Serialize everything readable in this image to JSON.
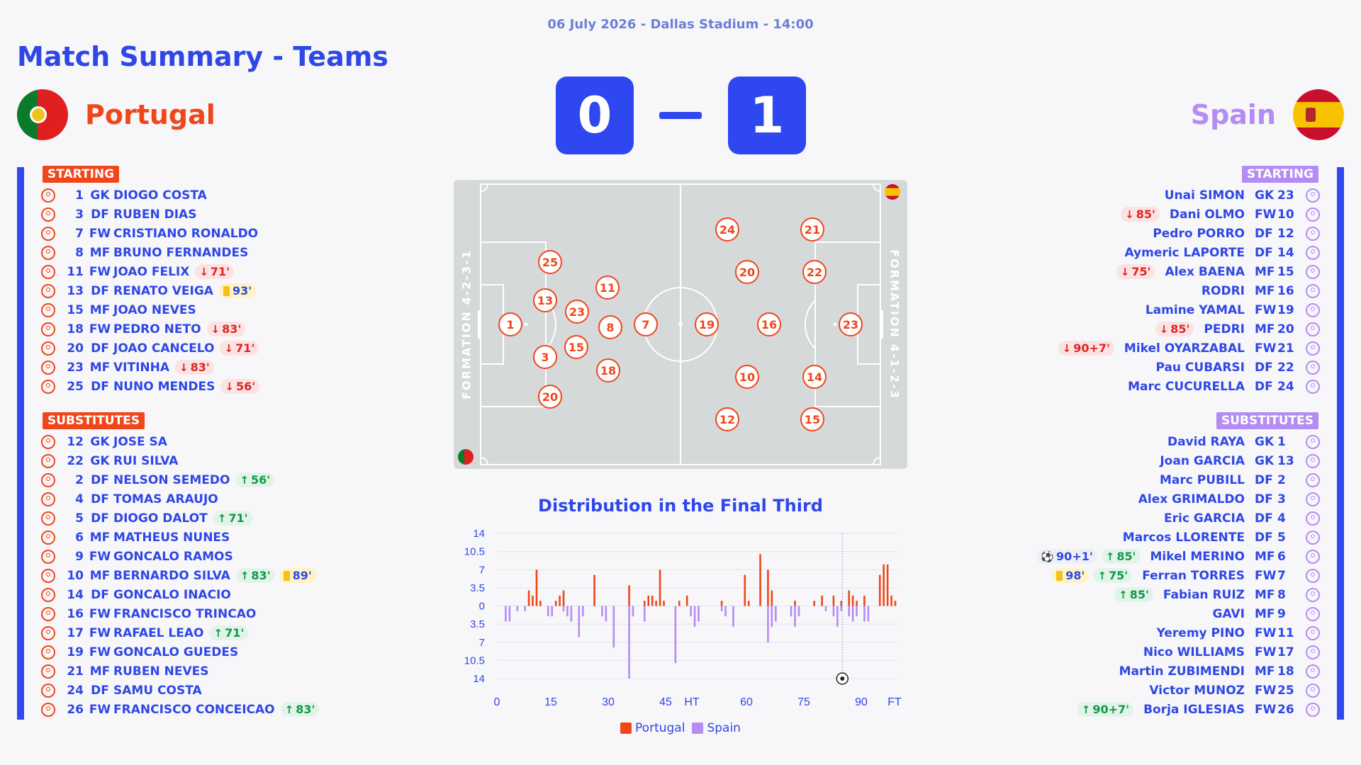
{
  "header": {
    "dateline": "06 July 2026 - Dallas Stadium - 14:00",
    "title": "Match Summary - Teams"
  },
  "colors": {
    "home": "#f0461a",
    "away": "#b48cf4",
    "accent": "#2f47e6",
    "card": "#f2c21b"
  },
  "home": {
    "name": "Portugal",
    "score": "0",
    "formation": "FORMATION 4-2-3-1",
    "starting_label": "STARTING",
    "subs_label": "SUBSTITUTES",
    "starting": [
      {
        "num": "1",
        "pos": "GK",
        "name": "DIOGO COSTA",
        "events": []
      },
      {
        "num": "3",
        "pos": "DF",
        "name": "RUBEN DIAS",
        "events": []
      },
      {
        "num": "7",
        "pos": "FW",
        "name": "CRISTIANO RONALDO",
        "events": []
      },
      {
        "num": "8",
        "pos": "MF",
        "name": "BRUNO FERNANDES",
        "events": []
      },
      {
        "num": "11",
        "pos": "FW",
        "name": "JOAO FELIX",
        "events": [
          {
            "type": "off",
            "time": "71'"
          }
        ]
      },
      {
        "num": "13",
        "pos": "DF",
        "name": "RENATO VEIGA",
        "events": [
          {
            "type": "yellow",
            "time": "93'"
          }
        ]
      },
      {
        "num": "15",
        "pos": "MF",
        "name": "JOAO NEVES",
        "events": []
      },
      {
        "num": "18",
        "pos": "FW",
        "name": "PEDRO NETO",
        "events": [
          {
            "type": "off",
            "time": "83'"
          }
        ]
      },
      {
        "num": "20",
        "pos": "DF",
        "name": "JOAO CANCELO",
        "events": [
          {
            "type": "off",
            "time": "71'"
          }
        ]
      },
      {
        "num": "23",
        "pos": "MF",
        "name": "VITINHA",
        "events": [
          {
            "type": "off",
            "time": "83'"
          }
        ]
      },
      {
        "num": "25",
        "pos": "DF",
        "name": "NUNO MENDES",
        "events": [
          {
            "type": "off",
            "time": "56'"
          }
        ]
      }
    ],
    "substitutes": [
      {
        "num": "12",
        "pos": "GK",
        "name": "JOSE SA",
        "events": []
      },
      {
        "num": "22",
        "pos": "GK",
        "name": "RUI SILVA",
        "events": []
      },
      {
        "num": "2",
        "pos": "DF",
        "name": "NELSON SEMEDO",
        "events": [
          {
            "type": "on",
            "time": "56'"
          }
        ]
      },
      {
        "num": "4",
        "pos": "DF",
        "name": "TOMAS ARAUJO",
        "events": []
      },
      {
        "num": "5",
        "pos": "DF",
        "name": "DIOGO DALOT",
        "events": [
          {
            "type": "on",
            "time": "71'"
          }
        ]
      },
      {
        "num": "6",
        "pos": "MF",
        "name": "MATHEUS NUNES",
        "events": []
      },
      {
        "num": "9",
        "pos": "FW",
        "name": "GONCALO RAMOS",
        "events": []
      },
      {
        "num": "10",
        "pos": "MF",
        "name": "BERNARDO SILVA",
        "events": [
          {
            "type": "on",
            "time": "83'"
          },
          {
            "type": "yellow",
            "time": "89'"
          }
        ]
      },
      {
        "num": "14",
        "pos": "DF",
        "name": "GONCALO INACIO",
        "events": []
      },
      {
        "num": "16",
        "pos": "FW",
        "name": "FRANCISCO TRINCAO",
        "events": []
      },
      {
        "num": "17",
        "pos": "FW",
        "name": "RAFAEL LEAO",
        "events": [
          {
            "type": "on",
            "time": "71'"
          }
        ]
      },
      {
        "num": "19",
        "pos": "FW",
        "name": "GONCALO GUEDES",
        "events": []
      },
      {
        "num": "21",
        "pos": "MF",
        "name": "RUBEN NEVES",
        "events": []
      },
      {
        "num": "24",
        "pos": "DF",
        "name": "SAMU COSTA",
        "events": []
      },
      {
        "num": "26",
        "pos": "FW",
        "name": "FRANCISCO CONCEICAO",
        "events": [
          {
            "type": "on",
            "time": "83'"
          }
        ]
      }
    ],
    "lineup": [
      "1",
      "3",
      "13",
      "20",
      "25",
      "23",
      "15",
      "11",
      "8",
      "18",
      "7"
    ]
  },
  "away": {
    "name": "Spain",
    "score": "1",
    "formation": "FORMATION 4-1-2-3",
    "starting_label": "STARTING",
    "subs_label": "SUBSTITUTES",
    "starting": [
      {
        "num": "23",
        "pos": "GK",
        "name": "Unai SIMON",
        "events": []
      },
      {
        "num": "10",
        "pos": "FW",
        "name": "Dani OLMO",
        "events": [
          {
            "type": "off",
            "time": "85'"
          }
        ]
      },
      {
        "num": "12",
        "pos": "DF",
        "name": "Pedro PORRO",
        "events": []
      },
      {
        "num": "14",
        "pos": "DF",
        "name": "Aymeric LAPORTE",
        "events": []
      },
      {
        "num": "15",
        "pos": "MF",
        "name": "Alex BAENA",
        "events": [
          {
            "type": "off",
            "time": "75'"
          }
        ]
      },
      {
        "num": "16",
        "pos": "MF",
        "name": "RODRI",
        "events": []
      },
      {
        "num": "19",
        "pos": "FW",
        "name": "Lamine YAMAL",
        "events": []
      },
      {
        "num": "20",
        "pos": "MF",
        "name": "PEDRI",
        "events": [
          {
            "type": "off",
            "time": "85'"
          }
        ]
      },
      {
        "num": "21",
        "pos": "FW",
        "name": "Mikel OYARZABAL",
        "events": [
          {
            "type": "off",
            "time": "90+7'"
          }
        ]
      },
      {
        "num": "22",
        "pos": "DF",
        "name": "Pau CUBARSI",
        "events": []
      },
      {
        "num": "24",
        "pos": "DF",
        "name": "Marc CUCURELLA",
        "events": []
      }
    ],
    "substitutes": [
      {
        "num": "1",
        "pos": "GK",
        "name": "David RAYA",
        "events": []
      },
      {
        "num": "13",
        "pos": "GK",
        "name": "Joan GARCIA",
        "events": []
      },
      {
        "num": "2",
        "pos": "DF",
        "name": "Marc PUBILL",
        "events": []
      },
      {
        "num": "3",
        "pos": "DF",
        "name": "Alex GRIMALDO",
        "events": []
      },
      {
        "num": "4",
        "pos": "DF",
        "name": "Eric GARCIA",
        "events": []
      },
      {
        "num": "5",
        "pos": "DF",
        "name": "Marcos LLORENTE",
        "events": []
      },
      {
        "num": "6",
        "pos": "MF",
        "name": "Mikel MERINO",
        "events": [
          {
            "type": "goal",
            "time": "90+1'"
          },
          {
            "type": "on",
            "time": "85'"
          }
        ]
      },
      {
        "num": "7",
        "pos": "FW",
        "name": "Ferran TORRES",
        "events": [
          {
            "type": "yellow",
            "time": "98'"
          },
          {
            "type": "on",
            "time": "75'"
          }
        ]
      },
      {
        "num": "8",
        "pos": "MF",
        "name": "Fabian RUIZ",
        "events": [
          {
            "type": "on",
            "time": "85'"
          }
        ]
      },
      {
        "num": "9",
        "pos": "MF",
        "name": "GAVI",
        "events": []
      },
      {
        "num": "11",
        "pos": "FW",
        "name": "Yeremy PINO",
        "events": []
      },
      {
        "num": "17",
        "pos": "FW",
        "name": "Nico WILLIAMS",
        "events": []
      },
      {
        "num": "18",
        "pos": "MF",
        "name": "Martin ZUBIMENDI",
        "events": []
      },
      {
        "num": "25",
        "pos": "FW",
        "name": "Victor MUNOZ",
        "events": []
      },
      {
        "num": "26",
        "pos": "FW",
        "name": "Borja IGLESIAS",
        "events": [
          {
            "type": "on",
            "time": "90+7'"
          }
        ]
      }
    ],
    "lineup": [
      "23",
      "22",
      "14",
      "12",
      "24",
      "16",
      "20",
      "10",
      "19",
      "21",
      "15"
    ]
  },
  "chart_data": {
    "type": "bar",
    "title": "Distribution in the Final Third",
    "xtick_labels": [
      "0",
      "15",
      "30",
      "45",
      "HT",
      "60",
      "75",
      "90",
      "FT"
    ],
    "ytick_labels": [
      "14",
      "10.5",
      "7",
      "3.5",
      "0",
      "3.5",
      "7",
      "10.5",
      "14"
    ],
    "ylim": [
      -14,
      14
    ],
    "series": [
      {
        "name": "Portugal",
        "color": "#f0461a",
        "values": [
          0,
          0,
          0,
          0,
          0,
          0,
          0,
          3,
          2,
          7,
          1,
          0,
          0,
          0,
          1,
          2,
          3,
          0,
          0,
          0,
          0,
          0,
          0,
          0,
          6,
          0,
          0,
          0,
          0,
          0,
          0,
          0,
          0,
          4,
          0,
          0,
          0,
          1,
          2,
          2,
          1,
          7,
          1,
          0,
          0,
          0,
          1,
          0,
          2,
          0,
          0,
          0,
          0,
          0,
          0,
          0,
          0,
          1,
          0,
          0,
          0,
          0,
          0,
          6,
          1,
          0,
          0,
          10,
          0,
          7,
          3,
          0,
          0,
          0,
          0,
          0,
          1,
          0,
          0,
          0,
          0,
          1,
          0,
          2,
          0,
          0,
          2,
          0,
          1,
          0,
          3,
          2,
          1,
          0,
          2,
          0,
          0,
          0,
          6,
          8,
          8,
          2,
          1
        ]
      },
      {
        "name": "Spain",
        "color": "#b48cf4",
        "values": [
          0,
          3,
          3,
          0,
          1,
          0,
          1,
          0,
          0,
          0,
          0,
          0,
          2,
          2,
          0,
          0,
          1,
          2,
          3,
          0,
          6,
          2,
          0,
          0,
          0,
          0,
          2,
          3,
          0,
          8,
          0,
          0,
          0,
          14,
          2,
          0,
          0,
          3,
          0,
          0,
          0,
          0,
          0,
          0,
          0,
          11,
          0,
          0,
          0,
          2,
          4,
          3,
          0,
          0,
          0,
          0,
          0,
          1,
          2,
          0,
          4,
          0,
          0,
          0,
          0,
          0,
          0,
          0,
          0,
          7,
          4,
          3,
          0,
          0,
          0,
          2,
          4,
          2,
          0,
          0,
          0,
          0,
          0,
          0,
          1,
          0,
          2,
          4,
          1,
          0,
          2,
          3,
          2,
          0,
          3,
          3,
          0,
          0,
          0,
          0,
          0,
          0,
          0
        ]
      }
    ],
    "annotations": [
      {
        "x": 90,
        "type": "goal-marker"
      }
    ],
    "grid": true,
    "legend": "bottom-center"
  }
}
